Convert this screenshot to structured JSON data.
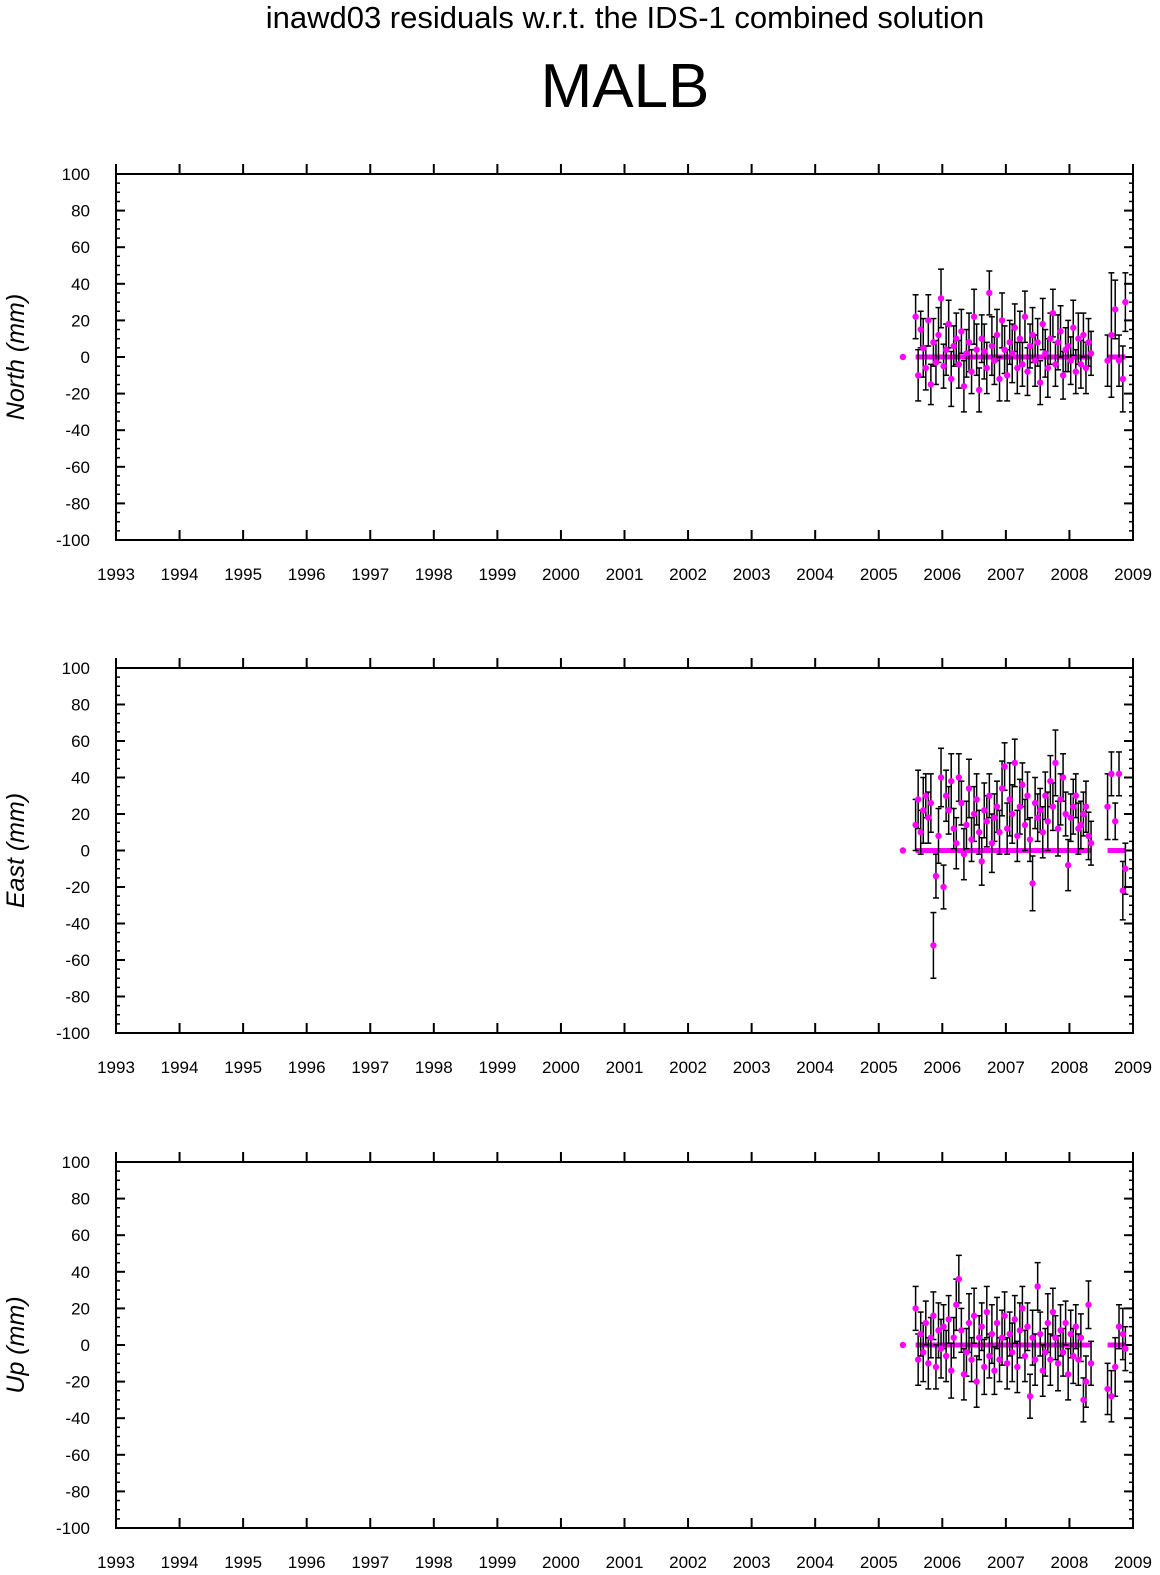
{
  "subtitle": "inawd03 residuals w.r.t. the IDS-1 combined solution",
  "title": "MALB",
  "colors": {
    "point": "#ff00ff",
    "errorbar": "#000000",
    "axis": "#000000"
  },
  "chart_data": [
    {
      "type": "scatter",
      "panel": "north",
      "ylabel": "North (mm)",
      "xlim": [
        1993,
        2009
      ],
      "ylim": [
        -100,
        100
      ],
      "xticks": [
        1993,
        1994,
        1995,
        1996,
        1997,
        1998,
        1999,
        2000,
        2001,
        2002,
        2003,
        2004,
        2005,
        2006,
        2007,
        2008,
        2009
      ],
      "yticks": [
        -100,
        -80,
        -60,
        -40,
        -20,
        0,
        20,
        40,
        60,
        80,
        100
      ],
      "grid": false,
      "series": [
        {
          "x": [
            2005.38,
            2005.58,
            2005.62,
            2005.66,
            2005.7,
            2005.74,
            2005.78,
            2005.82,
            2005.86,
            2005.9,
            2005.94,
            2005.98,
            2006.02,
            2006.06,
            2006.1,
            2006.14,
            2006.18,
            2006.22,
            2006.26,
            2006.3,
            2006.34,
            2006.38,
            2006.42,
            2006.46,
            2006.5,
            2006.54,
            2006.58,
            2006.62,
            2006.66,
            2006.7,
            2006.74,
            2006.78,
            2006.82,
            2006.86,
            2006.9,
            2006.94,
            2006.98,
            2007.02,
            2007.06,
            2007.1,
            2007.14,
            2007.18,
            2007.22,
            2007.26,
            2007.3,
            2007.34,
            2007.38,
            2007.42,
            2007.46,
            2007.5,
            2007.54,
            2007.58,
            2007.62,
            2007.66,
            2007.7,
            2007.74,
            2007.78,
            2007.82,
            2007.86,
            2007.9,
            2007.94,
            2007.98,
            2008.02,
            2008.06,
            2008.1,
            2008.14,
            2008.18,
            2008.22,
            2008.26,
            2008.3,
            2008.34,
            2008.6,
            2008.66,
            2008.72,
            2008.78,
            2008.84,
            2008.88
          ],
          "y": [
            0,
            22,
            -10,
            15,
            5,
            -6,
            20,
            -15,
            8,
            -3,
            12,
            32,
            -5,
            4,
            18,
            -12,
            6,
            10,
            -4,
            14,
            -16,
            2,
            8,
            -8,
            22,
            4,
            -18,
            10,
            3,
            -6,
            35,
            6,
            -2,
            12,
            -12,
            20,
            4,
            -10,
            8,
            2,
            16,
            -6,
            10,
            -4,
            22,
            -8,
            6,
            12,
            -2,
            8,
            -14,
            18,
            2,
            -6,
            10,
            24,
            -4,
            8,
            14,
            -10,
            4,
            6,
            -2,
            16,
            -8,
            10,
            -4,
            12,
            -6,
            8,
            2,
            -2,
            12,
            26,
            -2,
            -12,
            30
          ],
          "err": [
            0,
            12,
            14,
            10,
            16,
            12,
            14,
            11,
            13,
            12,
            15,
            16,
            12,
            14,
            13,
            15,
            11,
            14,
            13,
            12,
            14,
            13,
            16,
            12,
            15,
            14,
            12,
            13,
            15,
            14,
            12,
            16,
            13,
            14,
            12,
            15,
            13,
            14,
            12,
            16,
            13,
            14,
            15,
            12,
            14,
            13,
            12,
            15,
            14,
            13,
            12,
            14,
            13,
            16,
            14,
            13,
            12,
            15,
            14,
            13,
            12,
            14,
            13,
            15,
            12,
            14,
            13,
            12,
            14,
            13,
            12,
            14,
            34,
            16,
            14,
            18,
            16
          ]
        }
      ]
    },
    {
      "type": "scatter",
      "panel": "east",
      "ylabel": "East (mm)",
      "xlim": [
        1993,
        2009
      ],
      "ylim": [
        -100,
        100
      ],
      "xticks": [
        1993,
        1994,
        1995,
        1996,
        1997,
        1998,
        1999,
        2000,
        2001,
        2002,
        2003,
        2004,
        2005,
        2006,
        2007,
        2008,
        2009
      ],
      "yticks": [
        -100,
        -80,
        -60,
        -40,
        -20,
        0,
        20,
        40,
        60,
        80,
        100
      ],
      "grid": false,
      "series": [
        {
          "x": [
            2005.38,
            2005.58,
            2005.62,
            2005.66,
            2005.7,
            2005.74,
            2005.78,
            2005.82,
            2005.86,
            2005.9,
            2005.94,
            2005.98,
            2006.02,
            2006.06,
            2006.1,
            2006.14,
            2006.18,
            2006.22,
            2006.26,
            2006.3,
            2006.34,
            2006.38,
            2006.42,
            2006.46,
            2006.5,
            2006.54,
            2006.58,
            2006.62,
            2006.66,
            2006.7,
            2006.74,
            2006.78,
            2006.82,
            2006.86,
            2006.9,
            2006.94,
            2006.98,
            2007.02,
            2007.06,
            2007.1,
            2007.14,
            2007.18,
            2007.22,
            2007.26,
            2007.3,
            2007.34,
            2007.38,
            2007.42,
            2007.46,
            2007.5,
            2007.54,
            2007.58,
            2007.62,
            2007.66,
            2007.7,
            2007.74,
            2007.78,
            2007.82,
            2007.86,
            2007.9,
            2007.94,
            2007.98,
            2008.02,
            2008.06,
            2008.1,
            2008.14,
            2008.18,
            2008.22,
            2008.26,
            2008.3,
            2008.34,
            2008.6,
            2008.66,
            2008.72,
            2008.78,
            2008.84,
            2008.88
          ],
          "y": [
            0,
            14,
            28,
            10,
            22,
            30,
            18,
            26,
            -52,
            -14,
            8,
            40,
            -20,
            30,
            22,
            38,
            12,
            4,
            40,
            26,
            -2,
            14,
            34,
            6,
            20,
            28,
            10,
            -6,
            22,
            16,
            30,
            4,
            18,
            24,
            10,
            34,
            46,
            12,
            28,
            20,
            48,
            8,
            24,
            36,
            14,
            30,
            6,
            -18,
            26,
            18,
            22,
            10,
            30,
            16,
            38,
            24,
            48,
            12,
            28,
            40,
            20,
            -8,
            18,
            24,
            30,
            12,
            14,
            20,
            24,
            8,
            4,
            24,
            42,
            16,
            42,
            -22,
            -10
          ],
          "err": [
            0,
            14,
            16,
            12,
            18,
            12,
            14,
            16,
            18,
            12,
            15,
            16,
            12,
            14,
            13,
            15,
            11,
            14,
            13,
            12,
            14,
            13,
            16,
            12,
            15,
            14,
            12,
            13,
            15,
            14,
            12,
            16,
            13,
            14,
            12,
            15,
            13,
            14,
            20,
            16,
            13,
            14,
            15,
            12,
            14,
            13,
            12,
            15,
            14,
            13,
            12,
            14,
            13,
            16,
            14,
            13,
            18,
            15,
            14,
            13,
            12,
            14,
            13,
            15,
            12,
            14,
            13,
            12,
            14,
            13,
            12,
            18,
            12,
            10,
            12,
            16,
            14
          ]
        }
      ]
    },
    {
      "type": "scatter",
      "panel": "up",
      "ylabel": "Up (mm)",
      "xlim": [
        1993,
        2009
      ],
      "ylim": [
        -100,
        100
      ],
      "xticks": [
        1993,
        1994,
        1995,
        1996,
        1997,
        1998,
        1999,
        2000,
        2001,
        2002,
        2003,
        2004,
        2005,
        2006,
        2007,
        2008,
        2009
      ],
      "yticks": [
        -100,
        -80,
        -60,
        -40,
        -20,
        0,
        20,
        40,
        60,
        80,
        100
      ],
      "grid": false,
      "series": [
        {
          "x": [
            2005.38,
            2005.58,
            2005.62,
            2005.66,
            2005.7,
            2005.74,
            2005.78,
            2005.82,
            2005.86,
            2005.9,
            2005.94,
            2005.98,
            2006.02,
            2006.06,
            2006.1,
            2006.14,
            2006.18,
            2006.22,
            2006.26,
            2006.3,
            2006.34,
            2006.38,
            2006.42,
            2006.46,
            2006.5,
            2006.54,
            2006.58,
            2006.62,
            2006.66,
            2006.7,
            2006.74,
            2006.78,
            2006.82,
            2006.86,
            2006.9,
            2006.94,
            2006.98,
            2007.02,
            2007.06,
            2007.1,
            2007.14,
            2007.18,
            2007.22,
            2007.26,
            2007.3,
            2007.34,
            2007.38,
            2007.42,
            2007.46,
            2007.5,
            2007.54,
            2007.58,
            2007.62,
            2007.66,
            2007.7,
            2007.74,
            2007.78,
            2007.82,
            2007.86,
            2007.9,
            2007.94,
            2007.98,
            2008.02,
            2008.06,
            2008.1,
            2008.14,
            2008.18,
            2008.22,
            2008.26,
            2008.3,
            2008.34,
            2008.6,
            2008.66,
            2008.72,
            2008.78,
            2008.84,
            2008.88
          ],
          "y": [
            0,
            20,
            -8,
            6,
            -4,
            12,
            -10,
            4,
            16,
            -12,
            8,
            -2,
            10,
            -6,
            14,
            -14,
            4,
            22,
            36,
            8,
            -16,
            -4,
            12,
            -8,
            16,
            -20,
            4,
            10,
            -12,
            18,
            -6,
            6,
            -14,
            12,
            -8,
            4,
            16,
            -10,
            6,
            -4,
            14,
            -12,
            8,
            20,
            -6,
            10,
            -28,
            4,
            -8,
            32,
            6,
            -14,
            -4,
            12,
            -8,
            18,
            4,
            -10,
            8,
            -4,
            12,
            -16,
            6,
            -6,
            10,
            -8,
            4,
            -30,
            -20,
            22,
            -10,
            -24,
            -28,
            -12,
            10,
            6,
            -2
          ],
          "err": [
            0,
            12,
            14,
            12,
            16,
            12,
            14,
            11,
            13,
            12,
            15,
            16,
            12,
            14,
            13,
            15,
            11,
            14,
            13,
            12,
            14,
            13,
            16,
            12,
            15,
            14,
            12,
            13,
            15,
            14,
            12,
            16,
            13,
            14,
            12,
            15,
            13,
            14,
            12,
            16,
            13,
            14,
            15,
            12,
            14,
            13,
            12,
            15,
            14,
            13,
            12,
            14,
            13,
            16,
            14,
            13,
            12,
            15,
            14,
            13,
            12,
            14,
            13,
            15,
            12,
            14,
            13,
            12,
            14,
            13,
            12,
            14,
            14,
            16,
            12,
            14,
            12
          ]
        }
      ]
    }
  ]
}
